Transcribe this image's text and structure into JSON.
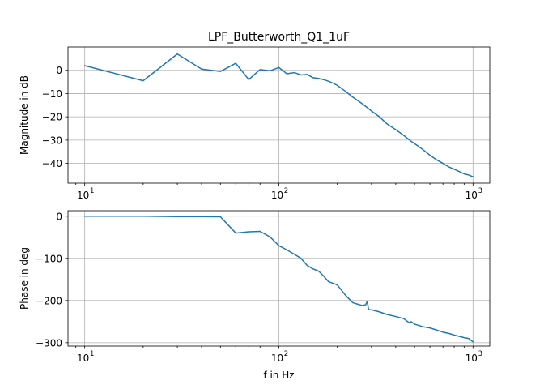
{
  "chart_data": [
    {
      "type": "line",
      "title": "LPF_Butterworth_Q1_1uF",
      "xlabel": "",
      "ylabel": "Magnitude in dB",
      "xscale": "log",
      "xlim": [
        8.2,
        1220
      ],
      "ylim": [
        -48.5,
        10
      ],
      "xticks": [
        10,
        100,
        1000
      ],
      "yticks": [
        0,
        -10,
        -20,
        -30,
        -40
      ],
      "ytick_labels": [
        "0",
        "−10",
        "−20",
        "−30",
        "−40"
      ],
      "grid": true,
      "series": [
        {
          "color": "#1f77b4",
          "x": [
            10,
            20,
            30,
            40,
            50,
            60,
            70,
            80,
            90,
            100,
            110,
            120,
            130,
            140,
            150,
            160,
            170,
            180,
            190,
            200,
            220,
            240,
            260,
            280,
            300,
            330,
            360,
            400,
            440,
            480,
            520,
            560,
            600,
            650,
            700,
            750,
            800,
            850,
            900,
            950,
            1000
          ],
          "y": [
            2,
            -4.5,
            7,
            0.5,
            -0.5,
            3,
            -4,
            0.3,
            -0.2,
            1.2,
            -1.5,
            -1,
            -2,
            -1.8,
            -3.2,
            -3.5,
            -4,
            -4.7,
            -5.5,
            -6.5,
            -9,
            -11.5,
            -13.5,
            -15.5,
            -17.5,
            -20,
            -23,
            -25.5,
            -28,
            -30.5,
            -32.5,
            -34.5,
            -36.5,
            -38.5,
            -40,
            -41.5,
            -42.5,
            -43.5,
            -44.5,
            -45,
            -45.8
          ]
        }
      ]
    },
    {
      "type": "line",
      "title": "",
      "xlabel": "f in Hz",
      "ylabel": "Phase in deg",
      "xscale": "log",
      "xlim": [
        8.2,
        1220
      ],
      "ylim": [
        -308,
        13
      ],
      "xticks": [
        10,
        100,
        1000
      ],
      "yticks": [
        0,
        -100,
        -200,
        -300
      ],
      "ytick_labels": [
        "0",
        "−100",
        "−200",
        "−300"
      ],
      "grid": true,
      "series": [
        {
          "color": "#1f77b4",
          "x": [
            10,
            20,
            30,
            40,
            50,
            60,
            70,
            80,
            90,
            100,
            110,
            120,
            130,
            140,
            150,
            160,
            170,
            180,
            200,
            220,
            240,
            260,
            270,
            280,
            285,
            290,
            300,
            330,
            360,
            400,
            440,
            470,
            480,
            500,
            550,
            600,
            650,
            700,
            750,
            800,
            850,
            900,
            950,
            1000
          ],
          "y": [
            0,
            0,
            -1,
            -1,
            -1.5,
            -40,
            -37,
            -36,
            -49,
            -70,
            -80,
            -90,
            -100,
            -117,
            -125,
            -130,
            -142,
            -155,
            -163,
            -187,
            -205,
            -210,
            -212,
            -210,
            -202,
            -222,
            -222,
            -227,
            -233,
            -238,
            -243,
            -253,
            -250,
            -256,
            -262,
            -265,
            -270,
            -275,
            -278,
            -282,
            -285,
            -288,
            -290,
            -298
          ]
        }
      ]
    }
  ]
}
